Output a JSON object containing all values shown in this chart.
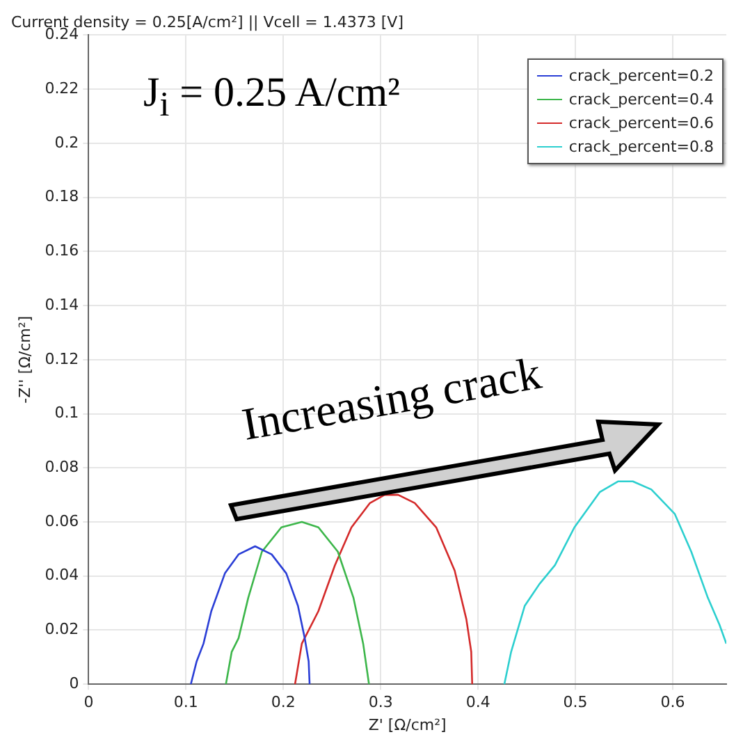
{
  "chart_data": {
    "type": "line",
    "title": "Current density = 0.25[A/cm²] || Vcell = 1.4373 [V]",
    "xlabel": "Z' [Ω/cm²]",
    "ylabel": "-Z'' [Ω/cm²]",
    "annotations": [
      "J$_{i}$ = 0.25 A/cm²",
      "Increasing crack"
    ],
    "xlim": [
      0,
      0.655
    ],
    "xticks": [
      0,
      0.1,
      0.2,
      0.3,
      0.4,
      0.5,
      0.6
    ],
    "ylim": [
      0,
      0.24
    ],
    "yticks": [
      0,
      0.02,
      0.04,
      0.06,
      0.08,
      0.1,
      0.12,
      0.14,
      0.16,
      0.18,
      0.2,
      0.22,
      0.24
    ],
    "grid": true,
    "legend": "top right",
    "marker": "none",
    "line_style": "solid",
    "series": [
      {
        "name": "crack_percent=0.2",
        "color": "#2a3ed6",
        "x": [
          0.105,
          0.111,
          0.118,
          0.126,
          0.14,
          0.154,
          0.171,
          0.188,
          0.203,
          0.215,
          0.222,
          0.226,
          0.227
        ],
        "values": [
          0,
          0.0085,
          0.015,
          0.027,
          0.041,
          0.048,
          0.051,
          0.048,
          0.041,
          0.029,
          0.017,
          0.0085,
          0
        ]
      },
      {
        "name": "crack_percent=0.4",
        "color": "#3cb64a",
        "x": [
          0.141,
          0.147,
          0.154,
          0.164,
          0.178,
          0.198,
          0.219,
          0.236,
          0.256,
          0.272,
          0.282,
          0.288
        ],
        "values": [
          0,
          0.012,
          0.017,
          0.032,
          0.049,
          0.058,
          0.06,
          0.058,
          0.049,
          0.032,
          0.015,
          0
        ]
      },
      {
        "name": "crack_percent=0.6",
        "color": "#d42a2a",
        "x": [
          0.212,
          0.219,
          0.236,
          0.253,
          0.27,
          0.289,
          0.304,
          0.318,
          0.335,
          0.357,
          0.376,
          0.388,
          0.393,
          0.394
        ],
        "values": [
          0,
          0.015,
          0.027,
          0.044,
          0.058,
          0.067,
          0.07,
          0.07,
          0.067,
          0.058,
          0.042,
          0.024,
          0.012,
          0
        ]
      },
      {
        "name": "crack_percent=0.8",
        "color": "#2ccfcf",
        "x": [
          0.427,
          0.434,
          0.448,
          0.463,
          0.479,
          0.499,
          0.525,
          0.544,
          0.559,
          0.578,
          0.602,
          0.619,
          0.636,
          0.648,
          0.655
        ],
        "values": [
          0,
          0.012,
          0.029,
          0.037,
          0.044,
          0.058,
          0.071,
          0.075,
          0.075,
          0.072,
          0.063,
          0.049,
          0.032,
          0.022,
          0.015
        ]
      }
    ]
  }
}
